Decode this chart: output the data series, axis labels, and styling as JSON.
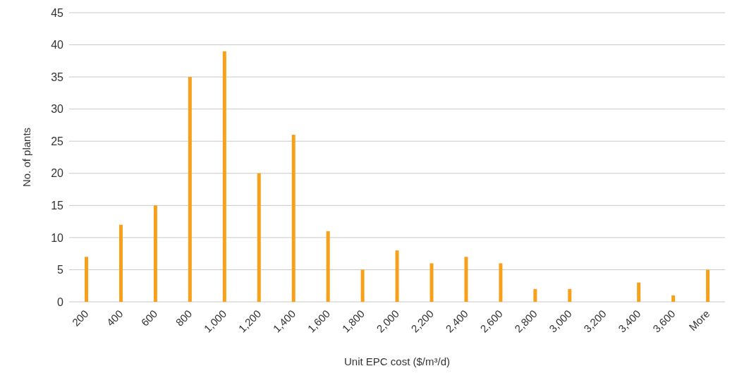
{
  "chart_data": {
    "type": "bar",
    "xlabel": "Unit EPC cost ($/m³/d)",
    "ylabel": "No. of plants",
    "categories": [
      "200",
      "400",
      "600",
      "800",
      "1,000",
      "1,200",
      "1,400",
      "1,600",
      "1,800",
      "2,000",
      "2,200",
      "2,400",
      "2,600",
      "2,800",
      "3,000",
      "3,200",
      "3,400",
      "3,600",
      "More"
    ],
    "values": [
      7,
      12,
      15,
      35,
      39,
      20,
      26,
      11,
      5,
      8,
      6,
      7,
      6,
      2,
      2,
      0,
      3,
      1,
      5
    ],
    "color": "#f7a11a",
    "ylim": [
      0,
      45
    ],
    "yticks": [
      0,
      5,
      10,
      15,
      20,
      25,
      30,
      35,
      40,
      45
    ],
    "grid": "y",
    "legend": false
  }
}
